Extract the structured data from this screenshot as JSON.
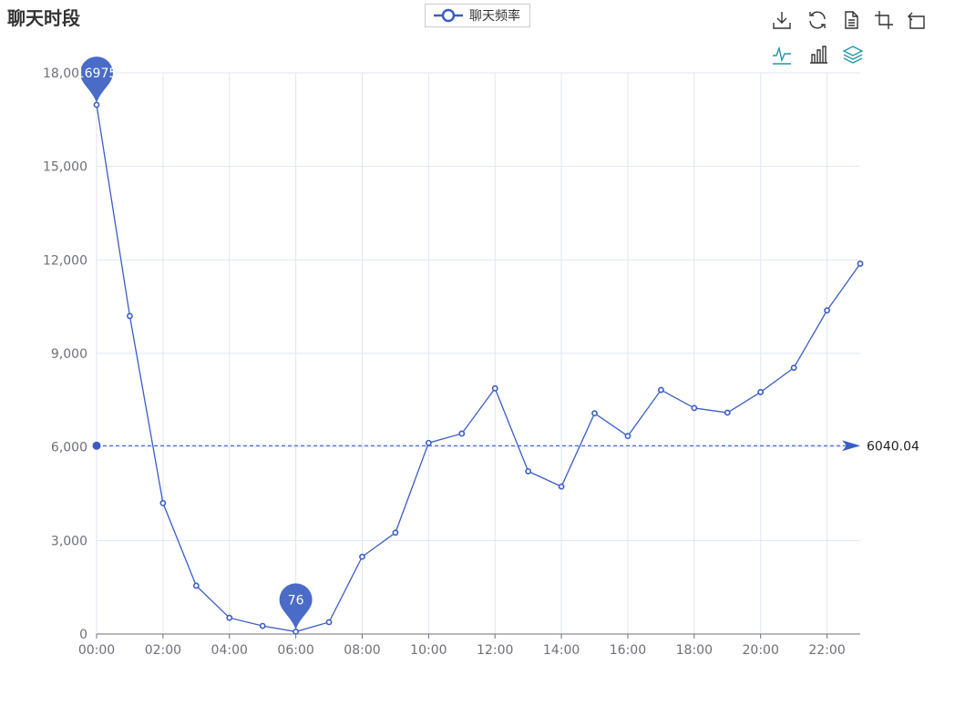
{
  "title": "聊天时段",
  "legend": {
    "label": "聊天频率",
    "color": "#3a5dc4"
  },
  "toolbox": {
    "icons": [
      "download-icon",
      "refresh-icon",
      "data-view-icon",
      "zoom-icon",
      "zoom-reset-icon",
      "line-chart-icon",
      "bar-chart-icon",
      "stack-icon"
    ],
    "color": "#333333",
    "active_color": "#2196a8"
  },
  "chart_data": {
    "type": "line",
    "categories": [
      "00:00",
      "01:00",
      "02:00",
      "03:00",
      "04:00",
      "05:00",
      "06:00",
      "07:00",
      "08:00",
      "09:00",
      "10:00",
      "11:00",
      "12:00",
      "13:00",
      "14:00",
      "15:00",
      "16:00",
      "17:00",
      "18:00",
      "19:00",
      "20:00",
      "21:00",
      "22:00",
      "23:00"
    ],
    "x_tick_labels": [
      "00:00",
      "02:00",
      "04:00",
      "06:00",
      "08:00",
      "10:00",
      "12:00",
      "14:00",
      "16:00",
      "18:00",
      "20:00",
      "22:00"
    ],
    "series": [
      {
        "name": "聊天频率",
        "values": [
          16975,
          10200,
          4200,
          1550,
          520,
          260,
          76,
          380,
          2480,
          3250,
          6130,
          6430,
          7880,
          5220,
          4730,
          7080,
          6350,
          7830,
          7250,
          7100,
          7760,
          8540,
          10380,
          11880
        ],
        "color": "#3a5dc4"
      }
    ],
    "ylim": [
      0,
      18000
    ],
    "y_tick_labels": [
      "0",
      "3,000",
      "6,000",
      "9,000",
      "12,000",
      "15,000",
      "18,000"
    ],
    "y_ticks": [
      0,
      3000,
      6000,
      9000,
      12000,
      15000,
      18000
    ],
    "mark_points": [
      {
        "label": "16975",
        "category": "00:00",
        "value": 16975
      },
      {
        "label": "76",
        "category": "06:00",
        "value": 76
      }
    ],
    "mark_line": {
      "label": "6040.04",
      "value": 6040.04
    },
    "grid": true,
    "legend_position": "top-center"
  }
}
